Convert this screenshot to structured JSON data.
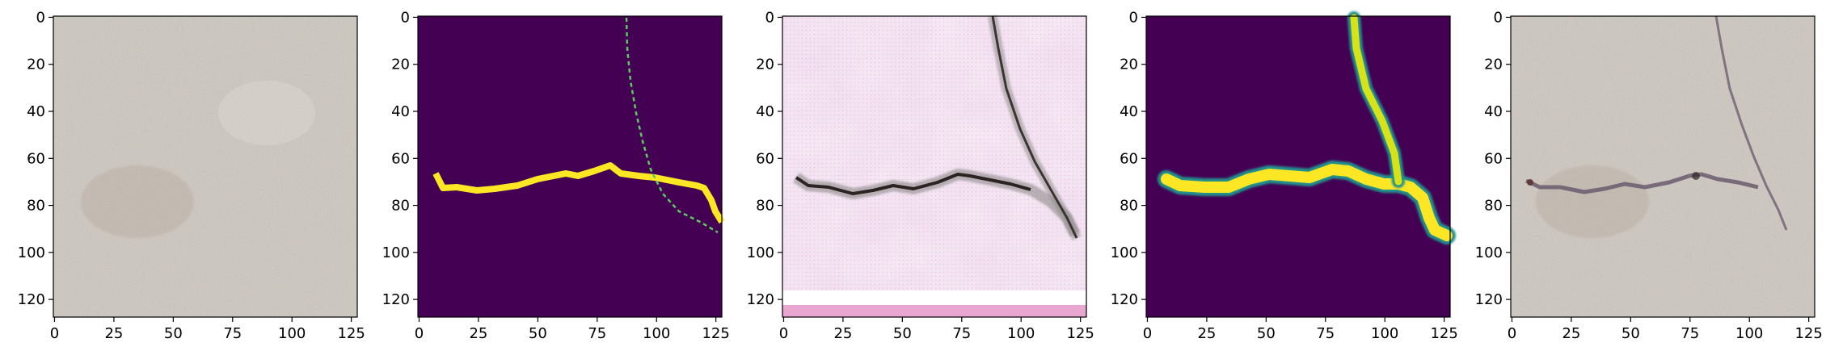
{
  "figure": {
    "panel_count": 5,
    "panels": [
      {
        "name": "panel-1-input-texture",
        "image": "concrete-texture-no-crack"
      },
      {
        "name": "panel-2-binary-crack-mask",
        "image": "binary-crack-mask"
      },
      {
        "name": "panel-3-generated-crack-image",
        "image": "generated-crack-image"
      },
      {
        "name": "panel-4-smooth-crack-mask",
        "image": "blurred-crack-mask"
      },
      {
        "name": "panel-5-blended-result",
        "image": "concrete-texture-with-crack"
      }
    ],
    "axes": {
      "x_ticks": [
        "0",
        "25",
        "50",
        "75",
        "100",
        "125"
      ],
      "y_ticks": [
        "0",
        "20",
        "40",
        "60",
        "80",
        "100",
        "120"
      ],
      "xlim": [
        -0.5,
        127.5
      ],
      "ylim": [
        127.5,
        -0.5
      ]
    },
    "colors": {
      "mask_background": "#440154",
      "mask_crack": "#fde725",
      "mask_mid": "#21918c",
      "concrete": "#cfc8c0",
      "generated_bg": "#f6eaf4"
    }
  }
}
